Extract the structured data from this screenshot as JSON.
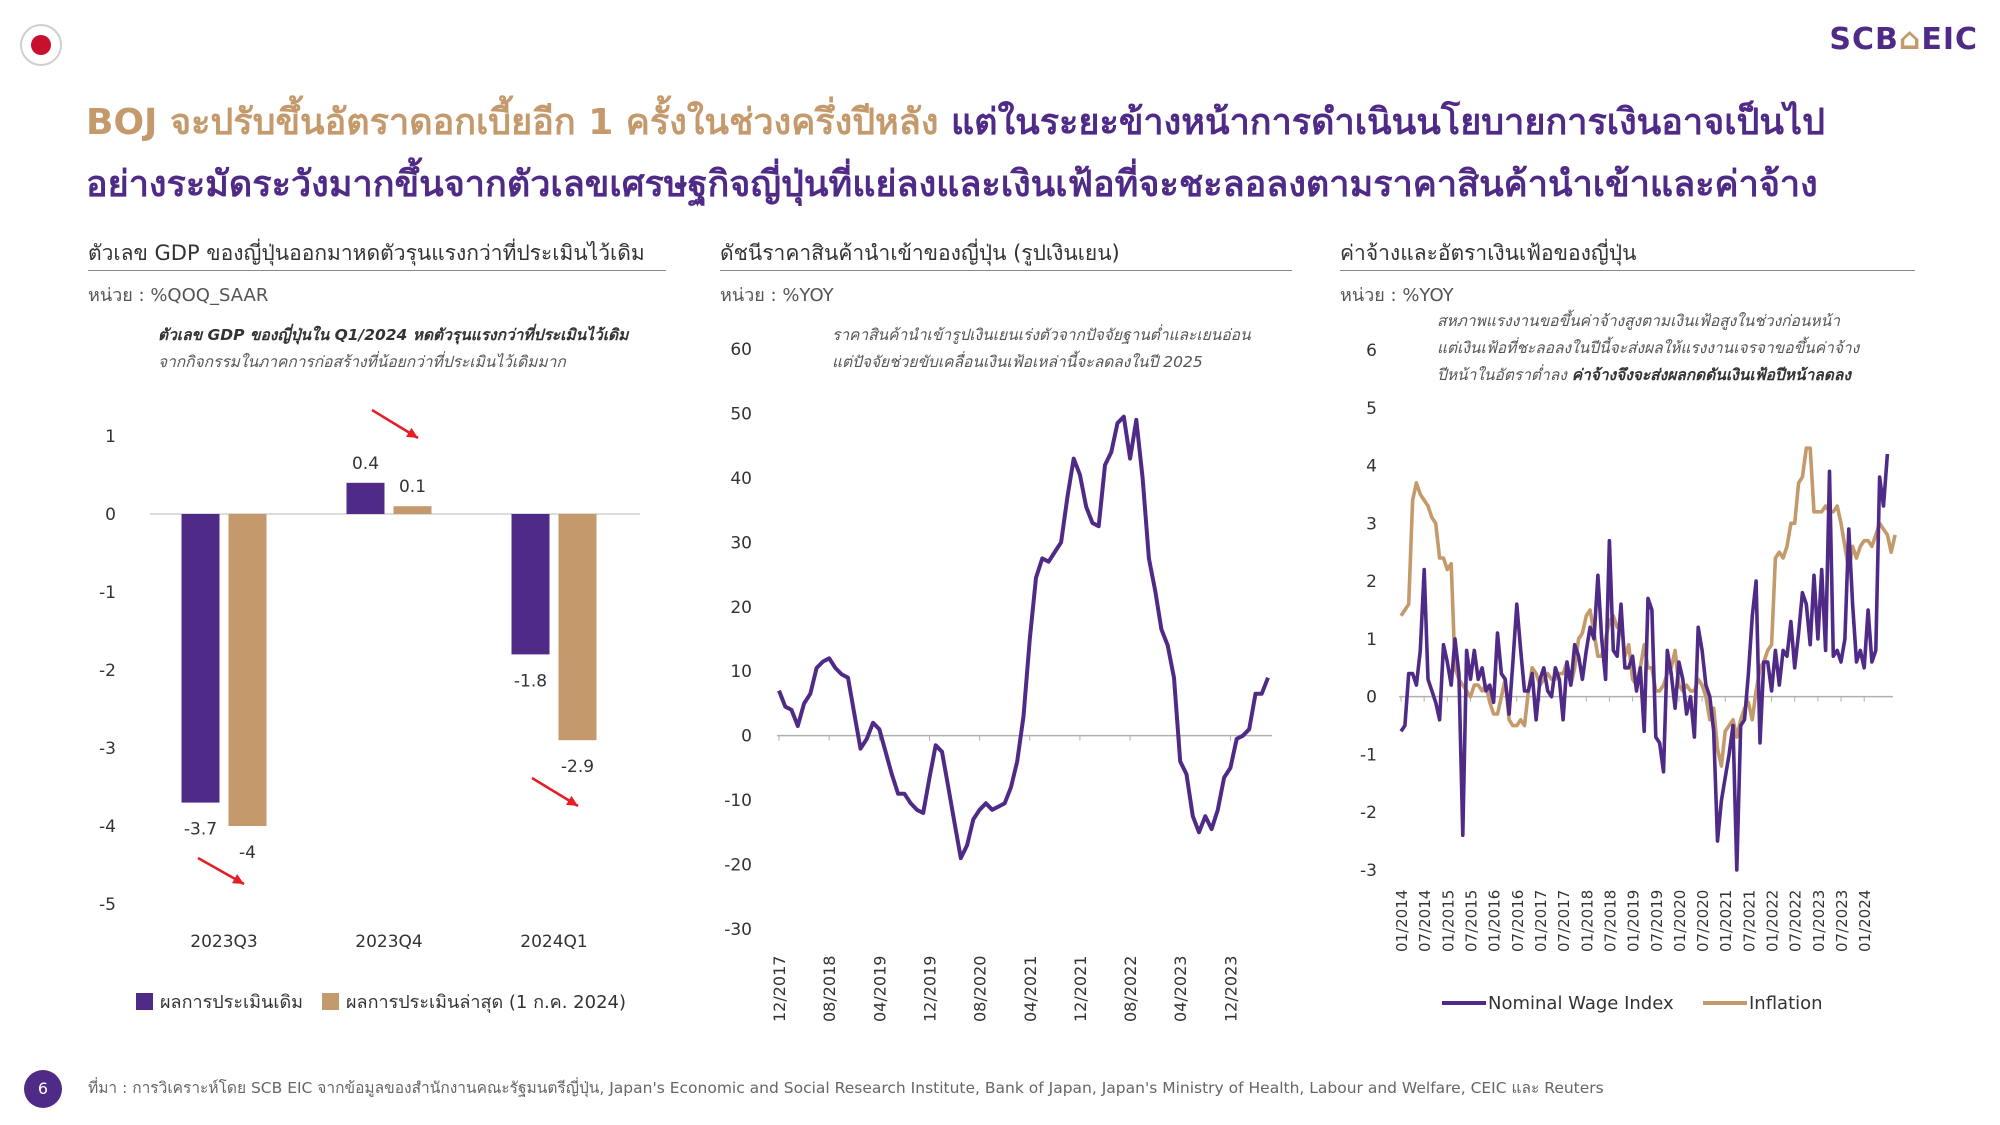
{
  "header": {
    "logo_text": "SCB",
    "logo_suffix": "EIC",
    "headline_gold": "BOJ จะปรับขึ้นอัตราดอกเบี้ยอีก 1 ครั้งในช่วงครึ่งปีหลัง",
    "headline_purple_1": " แต่ในระยะข้างหน้าการดำเนินนโยบายการเงินอาจเป็นไป",
    "headline_purple_2": "อย่างระมัดระวังมากขึ้นจากตัวเลขเศรษฐกิจญี่ปุ่นที่แย่ลงและเงินเฟ้อที่จะชะลอลงตามราคาสินค้านำเข้าและค่าจ้าง"
  },
  "colors": {
    "purple": "#4f2b87",
    "gold": "#c49a6c",
    "red": "#e31e24"
  },
  "panels": [
    {
      "title": "ตัวเลข GDP ของญี่ปุ่นออกมาหดตัวรุนแรงกว่าที่ประเมินไว้เดิม",
      "unit": "หน่วย : %QOQ_SAAR",
      "note_bold": "ตัวเลข GDP ของญี่ปุ่นใน Q1/2024 หดตัวรุนแรงกว่าที่ประเมินไว้เดิม",
      "note_line2": "จากกิจกรรมในภาคการก่อสร้างที่น้อยกว่าที่ประเมินไว้เดิมมาก"
    },
    {
      "title": "ดัชนีราคาสินค้านำเข้าของญี่ปุ่น (รูปเงินเยน)",
      "unit": "หน่วย : %YOY",
      "note_line1": "ราคาสินค้านำเข้ารูปเงินเยนเร่งตัวจากปัจจัยฐานต่ำและเยนอ่อน",
      "note_line2": "แต่ปัจจัยช่วยขับเคลื่อนเงินเฟ้อเหล่านี้จะลดลงในปี 2025"
    },
    {
      "title": "ค่าจ้างและอัตราเงินเฟ้อของญี่ปุ่น",
      "unit": "หน่วย : %YOY",
      "note_line1": "สหภาพแรงงานขอขึ้นค่าจ้างสูงตามเงินเฟ้อสูงในช่วงก่อนหน้า",
      "note_line2": "แต่เงินเฟ้อที่ชะลอลงในปีนี้จะส่งผลให้แรงงานเจรจาขอขึ้นค่าจ้าง",
      "note_line3a": "ปีหน้าในอัตราต่ำลง ",
      "note_line3b": "ค่าจ้างจึงจะส่งผลกดดันเงินเฟ้อปีหน้าลดลง"
    }
  ],
  "chart_data": [
    {
      "type": "bar",
      "categories": [
        "2023Q3",
        "2023Q4",
        "2024Q1"
      ],
      "series": [
        {
          "name": "ผลการประเมินเดิม",
          "values": [
            -3.7,
            0.4,
            -1.8
          ],
          "labels": [
            "-3.7",
            "0.4",
            "-1.8"
          ]
        },
        {
          "name": "ผลการประเมินล่าสุด (1 ก.ค. 2024)",
          "values": [
            -4.0,
            0.1,
            -2.9
          ],
          "labels": [
            "-4",
            "0.1",
            "-2.9"
          ]
        }
      ],
      "yticks": [
        1,
        0,
        -1,
        -2,
        -3,
        -4,
        -5
      ],
      "ylim": [
        -5,
        1
      ],
      "legend": "bottom"
    },
    {
      "type": "line",
      "series": [
        {
          "name": "",
          "values": [
            7,
            4.5,
            4,
            1.5,
            5,
            6.5,
            10.5,
            11.5,
            12,
            10.5,
            9.5,
            9,
            3.5,
            -2,
            -0.5,
            2,
            1,
            -2.5,
            -6,
            -9,
            -9,
            -10.5,
            -11.5,
            -12,
            -6.5,
            -1.5,
            -2.5,
            -8,
            -13.5,
            -19,
            -17,
            -13,
            -11.5,
            -10.5,
            -11.5,
            -11,
            -10.5,
            -8,
            -4,
            3,
            15,
            24.5,
            27.5,
            27,
            28.5,
            30,
            37,
            43,
            40.5,
            35.5,
            33,
            32.5,
            42,
            44,
            48.5,
            49.5,
            43,
            49,
            40,
            27.5,
            22.5,
            16.5,
            14,
            9,
            -4,
            -6,
            -12.5,
            -15,
            -12.5,
            -14.5,
            -11.5,
            -6.5,
            -5,
            -0.5,
            0,
            1,
            6.5,
            6.5,
            9
          ]
        }
      ],
      "x_start": "12/2017",
      "x_end": "08/2024",
      "xticks": [
        "12/2017",
        "08/2018",
        "04/2019",
        "12/2019",
        "08/2020",
        "04/2021",
        "12/2021",
        "08/2022",
        "04/2023",
        "12/2023"
      ],
      "yticks": [
        60,
        50,
        40,
        30,
        20,
        10,
        0,
        -10,
        -20,
        -30
      ],
      "ylim": [
        -30,
        60
      ],
      "legend": "none"
    },
    {
      "type": "line",
      "x_start": "01/2014",
      "x_end": "05/2024",
      "xticks": [
        "01/2014",
        "07/2014",
        "01/2015",
        "07/2015",
        "01/2016",
        "07/2016",
        "01/2017",
        "07/2017",
        "01/2018",
        "07/2018",
        "01/2019",
        "07/2019",
        "01/2020",
        "07/2020",
        "01/2021",
        "07/2021",
        "01/2022",
        "07/2022",
        "01/2023",
        "07/2023",
        "01/2024"
      ],
      "yticks": [
        6,
        5,
        4,
        3,
        2,
        1,
        0,
        -1,
        -2,
        -3
      ],
      "ylim": [
        -3,
        6
      ],
      "legend": "bottom",
      "series": [
        {
          "name": "Nominal Wage Index",
          "values": [
            -0.6,
            -0.5,
            0.4,
            0.4,
            0.2,
            0.8,
            2.2,
            0.3,
            0.1,
            -0.1,
            -0.4,
            0.9,
            0.6,
            0.2,
            1.0,
            0.4,
            -2.4,
            0.8,
            0.3,
            0.8,
            0.3,
            0.5,
            0.1,
            0.2,
            -0.1,
            1.1,
            0.4,
            0.3,
            -0.3,
            0.6,
            1.6,
            0.8,
            0.1,
            0.1,
            0.4,
            -0.4,
            0.3,
            0.5,
            0.1,
            0.0,
            0.5,
            0.3,
            -0.4,
            0.6,
            0.2,
            0.9,
            0.7,
            0.3,
            0.8,
            1.2,
            1.0,
            2.1,
            1.0,
            0.3,
            2.7,
            0.8,
            0.7,
            1.6,
            0.5,
            0.5,
            0.7,
            0.1,
            0.5,
            -0.6,
            1.7,
            1.5,
            -0.7,
            -0.8,
            -1.3,
            0.8,
            0.4,
            -0.2,
            0.6,
            0.3,
            -0.3,
            0.0,
            -0.7,
            1.2,
            0.8,
            0.2,
            0.0,
            -0.6,
            -2.5,
            -1.8,
            -1.4,
            -1.0,
            -0.5,
            -3.0,
            -0.5,
            -0.4,
            0.4,
            1.4,
            2.0,
            -0.8,
            0.6,
            0.6,
            0.1,
            0.8,
            0.2,
            0.8,
            0.7,
            1.3,
            0.5,
            1.1,
            1.8,
            1.6,
            0.9,
            2.1,
            1.0,
            2.2,
            0.8,
            3.9,
            0.7,
            0.8,
            0.6,
            1.0,
            2.9,
            1.6,
            0.6,
            0.8,
            0.5,
            1.5,
            0.6,
            0.8,
            3.8,
            3.3,
            4.2
          ]
        },
        {
          "name": "Inflation",
          "values": [
            1.4,
            1.5,
            1.6,
            3.4,
            3.7,
            3.5,
            3.4,
            3.3,
            3.1,
            3.0,
            2.4,
            2.4,
            2.2,
            2.3,
            0.5,
            0.3,
            0.2,
            0.1,
            0.0,
            0.2,
            0.2,
            0.1,
            0.2,
            -0.1,
            -0.3,
            -0.3,
            0.0,
            0.3,
            -0.4,
            -0.5,
            -0.5,
            -0.4,
            -0.5,
            0.1,
            0.5,
            0.4,
            0.2,
            0.3,
            0.4,
            0.3,
            0.3,
            0.4,
            0.4,
            0.6,
            0.2,
            0.5,
            1.0,
            1.1,
            1.4,
            1.5,
            1.1,
            0.7,
            0.7,
            1.0,
            1.3,
            1.4,
            1.2,
            1.3,
            0.7,
            0.9,
            0.3,
            0.2,
            0.5,
            0.9,
            0.5,
            0.5,
            0.1,
            0.1,
            0.2,
            0.4,
            0.5,
            0.8,
            0.2,
            0.1,
            0.2,
            0.1,
            0.1,
            0.3,
            0.2,
            0.0,
            -0.4,
            -0.2,
            -0.9,
            -1.2,
            -0.6,
            -0.5,
            -0.4,
            -0.7,
            -0.4,
            -0.2,
            -0.1,
            -0.4,
            0.1,
            0.5,
            0.6,
            0.8,
            0.9,
            2.4,
            2.5,
            2.4,
            2.6,
            3.0,
            3.0,
            3.7,
            3.8,
            4.3,
            4.3,
            3.2,
            3.2,
            3.2,
            3.3,
            3.2,
            3.2,
            3.3,
            3.0,
            2.6,
            2.2,
            2.6,
            2.4,
            2.6,
            2.7,
            2.7,
            2.6,
            2.8,
            3.0,
            2.9,
            2.8,
            2.5,
            2.8
          ]
        }
      ]
    }
  ],
  "footer": {
    "page_number": "6",
    "source": "ที่มา : การวิเคราะห์โดย SCB EIC จากข้อมูลของสำนักงานคณะรัฐมนตรีญี่ปุ่น, Japan's Economic and Social Research Institute, Bank of Japan, Japan's Ministry of Health, Labour and Welfare, CEIC และ Reuters"
  }
}
